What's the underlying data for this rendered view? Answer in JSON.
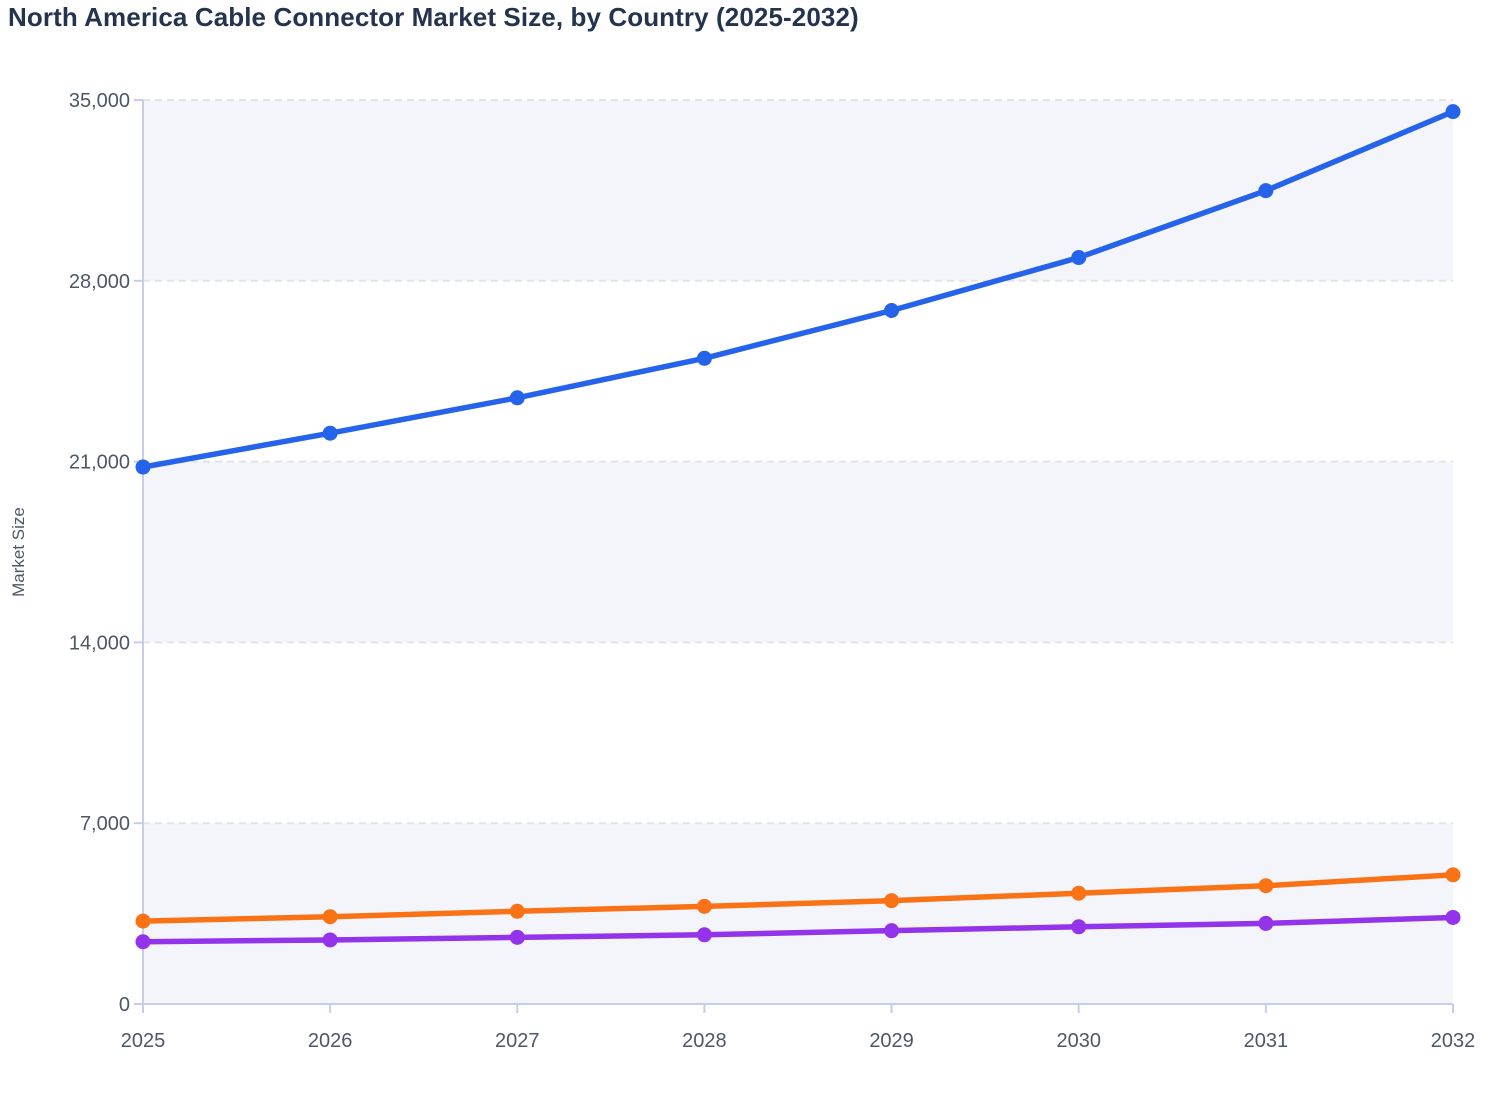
{
  "title": "North America Cable Connector Market Size, by Country (2025-2032)",
  "chart_data": {
    "type": "line",
    "title": "North America Cable Connector Market Size, by Country (2025-2032)",
    "xlabel": "",
    "ylabel": "Market Size",
    "categories": [
      "2025",
      "2026",
      "2027",
      "2028",
      "2029",
      "2030",
      "2031",
      "2032"
    ],
    "ylim": [
      0,
      35000
    ],
    "y_axis": {
      "values": [
        0,
        7000,
        14000,
        21000,
        28000,
        35000
      ],
      "labels": [
        "0",
        "7,000",
        "14,000",
        "21,000",
        "28,000",
        "35,000"
      ]
    },
    "grid": "horizontal dashed gridlines with alternating light row bands",
    "legend": "none",
    "series": [
      {
        "id": "blue",
        "color": "#2563eb",
        "values": [
          20790,
          22100,
          23470,
          25000,
          26850,
          28900,
          31490,
          34550
        ]
      },
      {
        "id": "orange",
        "color": "#f97316",
        "values": [
          3210,
          3380,
          3590,
          3780,
          4000,
          4290,
          4580,
          5000
        ]
      },
      {
        "id": "purple",
        "color": "#9333ea",
        "values": [
          2410,
          2480,
          2580,
          2680,
          2840,
          2990,
          3120,
          3350
        ]
      }
    ]
  },
  "style_colors": {
    "title_text": "#24344f",
    "tick_text": "#4d5766",
    "axis_line": "#c6cdec",
    "gridline": "#e2e3e8",
    "row_band": "#f4f5fa",
    "background": "#ffffff"
  }
}
